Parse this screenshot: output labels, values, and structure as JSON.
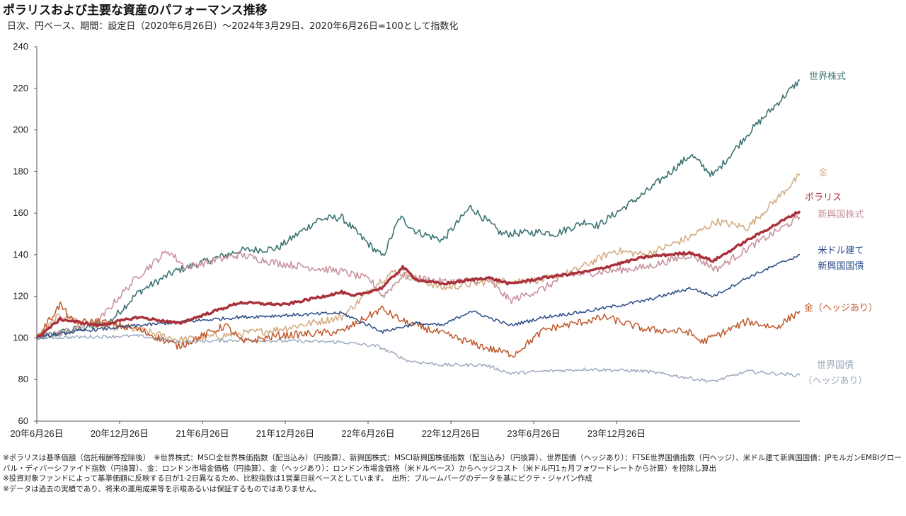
{
  "title": "ポラリスおよび主要な資産のパフォーマンス推移",
  "subtitle": "日次、円ベース、期間：設定日（2020年6月26日）〜2024年3月29日、2020年6月26日=100として指数化",
  "chart_data": {
    "type": "line",
    "ylim": [
      60,
      240
    ],
    "yticks": [
      60,
      80,
      100,
      120,
      140,
      160,
      180,
      200,
      220,
      240
    ],
    "xticks": [
      "20年6月26日",
      "20年12月26日",
      "21年6月26日",
      "21年12月26日",
      "22年6月26日",
      "22年12月26日",
      "23年6月26日",
      "23年12月26日"
    ],
    "x_range": [
      "2020-06-26",
      "2024-03-29"
    ],
    "grid": false,
    "series": [
      {
        "name": "世界株式",
        "color": "#3d7474",
        "width": 1.6,
        "label_lines": [
          "世界株式"
        ],
        "points": [
          [
            "2020-06-26",
            100
          ],
          [
            "2020-09-01",
            104
          ],
          [
            "2020-11-01",
            107
          ],
          [
            "2020-12-26",
            122
          ],
          [
            "2021-03-01",
            132
          ],
          [
            "2021-06-26",
            142
          ],
          [
            "2021-09-01",
            143
          ],
          [
            "2021-11-15",
            157
          ],
          [
            "2021-12-26",
            158
          ],
          [
            "2022-02-01",
            148
          ],
          [
            "2022-03-10",
            139
          ],
          [
            "2022-04-10",
            158
          ],
          [
            "2022-05-10",
            151
          ],
          [
            "2022-06-26",
            147
          ],
          [
            "2022-08-15",
            163
          ],
          [
            "2022-10-10",
            150
          ],
          [
            "2022-12-26",
            151
          ],
          [
            "2023-01-15",
            150
          ],
          [
            "2023-03-10",
            156
          ],
          [
            "2023-04-01",
            154
          ],
          [
            "2023-06-26",
            170
          ],
          [
            "2023-09-15",
            188
          ],
          [
            "2023-10-25",
            178
          ],
          [
            "2023-12-26",
            198
          ],
          [
            "2024-03-29",
            224
          ]
        ]
      },
      {
        "name": "金",
        "color": "#d4ae85",
        "width": 1.6,
        "label_lines": [
          "金"
        ],
        "points": [
          [
            "2020-06-26",
            100
          ],
          [
            "2020-08-07",
            111
          ],
          [
            "2020-10-15",
            106
          ],
          [
            "2020-12-26",
            104
          ],
          [
            "2021-03-08",
            99
          ],
          [
            "2021-06-26",
            102
          ],
          [
            "2021-09-01",
            104
          ],
          [
            "2021-12-26",
            110
          ],
          [
            "2022-03-08",
            128
          ],
          [
            "2022-04-01",
            132
          ],
          [
            "2022-06-26",
            124
          ],
          [
            "2022-09-15",
            127
          ],
          [
            "2022-12-26",
            128
          ],
          [
            "2023-02-15",
            132
          ],
          [
            "2023-05-01",
            142
          ],
          [
            "2023-06-26",
            140
          ],
          [
            "2023-09-10",
            148
          ],
          [
            "2023-10-31",
            156
          ],
          [
            "2023-12-26",
            153
          ],
          [
            "2024-03-29",
            178
          ]
        ]
      },
      {
        "name": "新興国株式",
        "color": "#c9949e",
        "width": 1.6,
        "label_lines": [
          "新興国株式"
        ],
        "points": [
          [
            "2020-06-26",
            100
          ],
          [
            "2020-09-01",
            104
          ],
          [
            "2020-10-15",
            108
          ],
          [
            "2020-11-15",
            118
          ],
          [
            "2020-12-26",
            130
          ],
          [
            "2021-02-17",
            142
          ],
          [
            "2021-03-20",
            134
          ],
          [
            "2021-06-26",
            140
          ],
          [
            "2021-09-01",
            136
          ],
          [
            "2021-12-26",
            132
          ],
          [
            "2022-02-15",
            128
          ],
          [
            "2022-03-10",
            120
          ],
          [
            "2022-04-15",
            130
          ],
          [
            "2022-06-26",
            127
          ],
          [
            "2022-09-15",
            128
          ],
          [
            "2022-10-25",
            118
          ],
          [
            "2022-12-26",
            124
          ],
          [
            "2023-02-01",
            130
          ],
          [
            "2023-06-26",
            134
          ],
          [
            "2023-09-15",
            140
          ],
          [
            "2023-10-31",
            133
          ],
          [
            "2023-12-26",
            143
          ],
          [
            "2024-03-29",
            158
          ]
        ]
      },
      {
        "name": "世界国債（ヘッジあり）",
        "color": "#9aa7bc",
        "width": 1.4,
        "label_lines": [
          "世界国債",
          "（ヘッジあり）"
        ],
        "points": [
          [
            "2020-06-26",
            100
          ],
          [
            "2020-12-26",
            101
          ],
          [
            "2021-03-08",
            98
          ],
          [
            "2021-06-26",
            99
          ],
          [
            "2021-12-26",
            98
          ],
          [
            "2022-03-01",
            96
          ],
          [
            "2022-04-25",
            89
          ],
          [
            "2022-06-26",
            87
          ],
          [
            "2022-09-10",
            87
          ],
          [
            "2022-10-25",
            83
          ],
          [
            "2022-12-26",
            84
          ],
          [
            "2023-03-15",
            85
          ],
          [
            "2023-06-26",
            84
          ],
          [
            "2023-10-25",
            79
          ],
          [
            "2023-12-26",
            84
          ],
          [
            "2024-03-29",
            82
          ]
        ]
      },
      {
        "name": "金（ヘッジあり）",
        "color": "#c0582a",
        "width": 1.5,
        "label_lines": [
          "金（ヘッジあり）"
        ],
        "points": [
          [
            "2020-06-26",
            100
          ],
          [
            "2020-08-07",
            116
          ],
          [
            "2020-09-01",
            107
          ],
          [
            "2020-10-15",
            108
          ],
          [
            "2020-12-26",
            104
          ],
          [
            "2021-03-08",
            96
          ],
          [
            "2021-06-01",
            106
          ],
          [
            "2021-07-01",
            98
          ],
          [
            "2021-09-01",
            101
          ],
          [
            "2021-12-26",
            103
          ],
          [
            "2022-03-08",
            114
          ],
          [
            "2022-04-15",
            108
          ],
          [
            "2022-06-26",
            102
          ],
          [
            "2022-09-15",
            95
          ],
          [
            "2022-10-31",
            92
          ],
          [
            "2022-12-26",
            104
          ],
          [
            "2023-04-15",
            110
          ],
          [
            "2023-06-26",
            104
          ],
          [
            "2023-09-10",
            103
          ],
          [
            "2023-10-05",
            98
          ],
          [
            "2023-12-26",
            108
          ],
          [
            "2024-02-15",
            105
          ],
          [
            "2024-03-29",
            113
          ]
        ]
      },
      {
        "name": "米ドル建て新興国国債",
        "color": "#2b4b86",
        "width": 1.5,
        "label_lines": [
          "米ドル建て",
          "新興国国債"
        ],
        "points": [
          [
            "2020-06-26",
            100
          ],
          [
            "2020-09-01",
            103
          ],
          [
            "2020-12-26",
            106
          ],
          [
            "2021-06-26",
            110
          ],
          [
            "2021-12-26",
            112
          ],
          [
            "2022-03-10",
            103
          ],
          [
            "2022-05-10",
            107
          ],
          [
            "2022-06-26",
            106
          ],
          [
            "2022-08-15",
            113
          ],
          [
            "2022-10-25",
            106
          ],
          [
            "2022-12-26",
            110
          ],
          [
            "2023-03-15",
            113
          ],
          [
            "2023-06-26",
            118
          ],
          [
            "2023-09-15",
            124
          ],
          [
            "2023-10-25",
            120
          ],
          [
            "2023-12-26",
            129
          ],
          [
            "2024-03-29",
            140
          ]
        ]
      },
      {
        "name": "ポラリス",
        "color": "#a8313b",
        "width": 3.4,
        "label_lines": [
          "ポラリス"
        ],
        "points": [
          [
            "2020-06-26",
            100
          ],
          [
            "2020-08-07",
            109
          ],
          [
            "2020-10-15",
            106
          ],
          [
            "2020-12-26",
            110
          ],
          [
            "2021-03-08",
            107
          ],
          [
            "2021-06-26",
            117
          ],
          [
            "2021-09-15",
            116
          ],
          [
            "2021-12-26",
            122
          ],
          [
            "2022-01-15",
            120
          ],
          [
            "2022-03-08",
            124
          ],
          [
            "2022-04-15",
            134
          ],
          [
            "2022-05-10",
            128
          ],
          [
            "2022-06-26",
            126
          ],
          [
            "2022-09-15",
            129
          ],
          [
            "2022-10-25",
            126
          ],
          [
            "2022-12-26",
            129
          ],
          [
            "2023-03-15",
            132
          ],
          [
            "2023-06-26",
            139
          ],
          [
            "2023-09-15",
            141
          ],
          [
            "2023-10-25",
            137
          ],
          [
            "2023-12-26",
            147
          ],
          [
            "2024-03-29",
            161
          ]
        ]
      }
    ]
  },
  "notes": [
    "※ポラリスは基準価額（信託報酬等控除後）　※世界株式：MSCI全世界株価指数（配当込み）（円換算）、新興国株式：MSCI新興国株価指数（配当込み）（円換算）、世界国債（ヘッジあり）：FTSE世界国債指数（円ヘッジ）、米ドル建て新興国国債：JPモルガンEMBIグローバル・ディバーシファイド指数（円換算）、金：ロンドン市場金価格（円換算）、金（ヘッジあり）：ロンドン市場金価格（米ドルベース）からヘッジコスト（米ドル円1ヵ月フォワードレートから計算）を控除し算出",
    "※投資対象ファンドによって基準価額に反映する日が1-2日異なるため、比較指数は1営業日前ベースとしています。　出所：ブルームバーグのデータを基にピクテ・ジャパン作成",
    "※データは過去の実績であり、将来の運用成果等を示唆あるいは保証するものではありません。"
  ]
}
